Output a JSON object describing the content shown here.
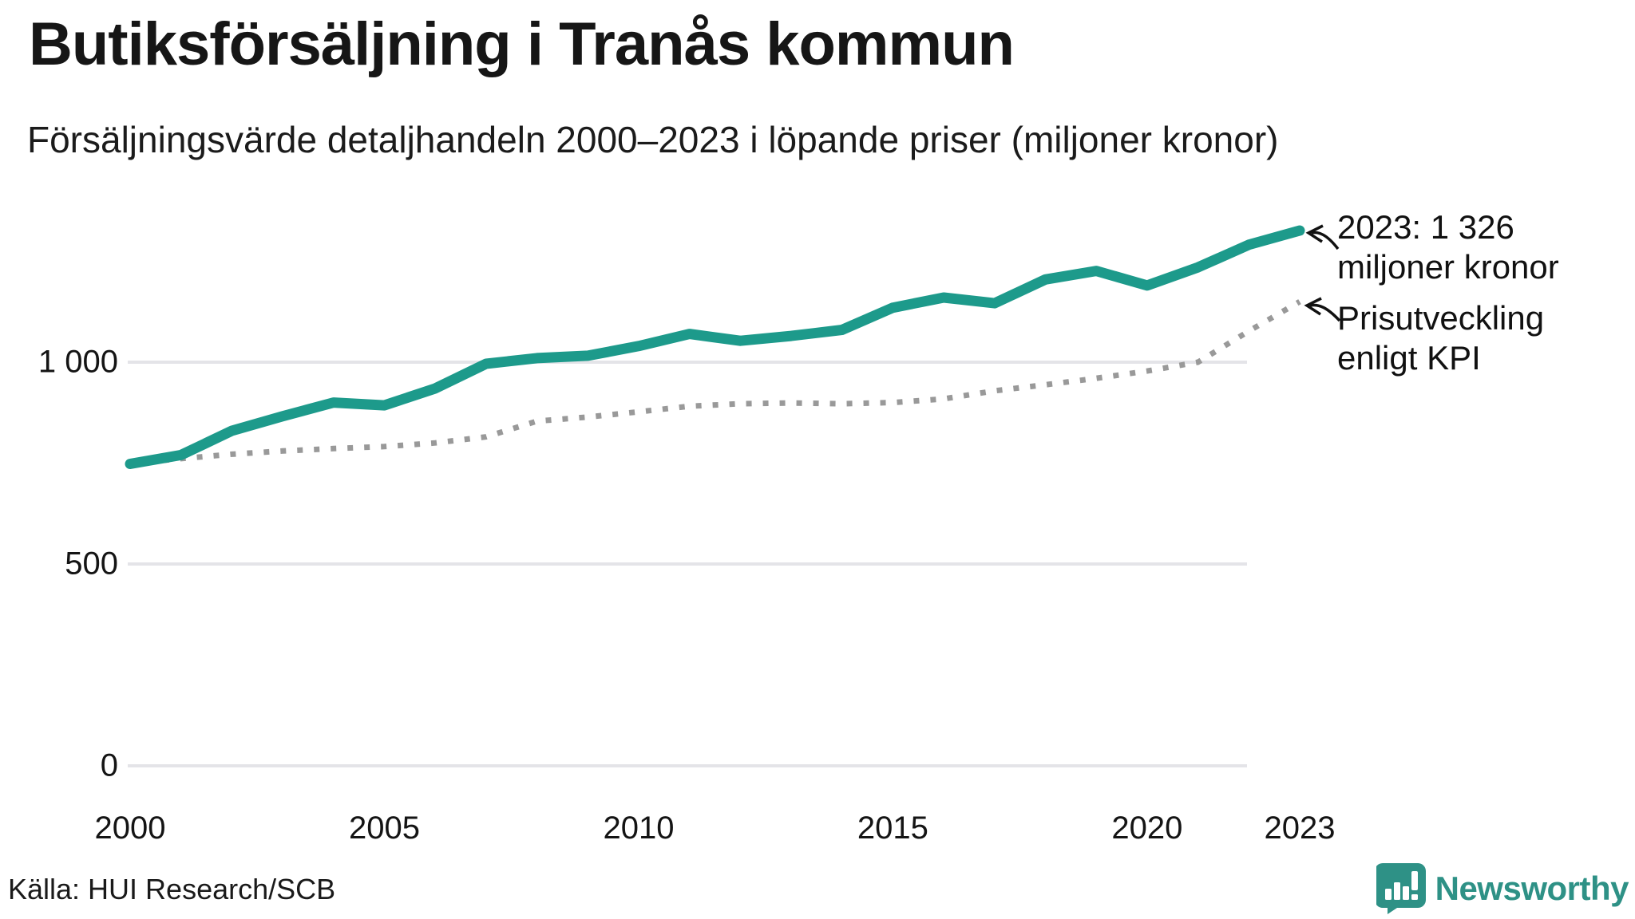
{
  "header": {
    "title": "Butiksförsäljning i Tranås kommun",
    "subtitle": "Försäljningsvärde detaljhandeln 2000–2023 i löpande priser (miljoner kronor)"
  },
  "annotations": [
    {
      "lines": [
        "2023: 1 326",
        "miljoner kronor"
      ]
    },
    {
      "lines": [
        "Prisutveckling",
        "enligt KPI"
      ]
    }
  ],
  "source": {
    "text": "Källa: HUI Research/SCB"
  },
  "logo": {
    "name": "Newsworthy"
  },
  "colors": {
    "sales_line": "#1d9a8b",
    "kpi_line": "#999999",
    "gridline": "#e4e4e8",
    "text": "#1a1a1a",
    "brand": "#2e9186"
  },
  "chart_data": {
    "type": "line",
    "title": "Butiksförsäljning i Tranås kommun",
    "subtitle": "Försäljningsvärde detaljhandeln 2000–2023 i löpande priser (miljoner kronor)",
    "xlabel": "",
    "ylabel": "miljoner kronor",
    "x": [
      2000,
      2001,
      2002,
      2003,
      2004,
      2005,
      2006,
      2007,
      2008,
      2009,
      2010,
      2011,
      2012,
      2013,
      2014,
      2015,
      2016,
      2017,
      2018,
      2019,
      2020,
      2021,
      2022,
      2023
    ],
    "series": [
      {
        "name": "Försäljningsvärde i löpande priser",
        "style": "solid",
        "color": "#1d9a8b",
        "values": [
          748,
          770,
          830,
          866,
          900,
          893,
          935,
          996,
          1010,
          1016,
          1040,
          1070,
          1053,
          1065,
          1080,
          1135,
          1160,
          1146,
          1205,
          1226,
          1190,
          1235,
          1291,
          1326
        ]
      },
      {
        "name": "Prisutveckling enligt KPI",
        "style": "dotted",
        "color": "#999999",
        "values": [
          748,
          761,
          772,
          780,
          786,
          791,
          800,
          815,
          854,
          864,
          877,
          891,
          897,
          899,
          897,
          900,
          909,
          929,
          944,
          960,
          978,
          1000,
          1077,
          1150
        ]
      }
    ],
    "highlight_label": "2023: 1 326 miljoner kronor",
    "xticks": [
      2000,
      2005,
      2010,
      2015,
      2020,
      2023
    ],
    "yticks": [
      {
        "value": 0,
        "label": "0"
      },
      {
        "value": 500,
        "label": "500"
      },
      {
        "value": 1000,
        "label": "1 000"
      }
    ],
    "xlim": [
      2000,
      2023
    ],
    "ylim": [
      0,
      1400
    ],
    "grid": "horizontal",
    "legend_position": "annotated-right"
  }
}
